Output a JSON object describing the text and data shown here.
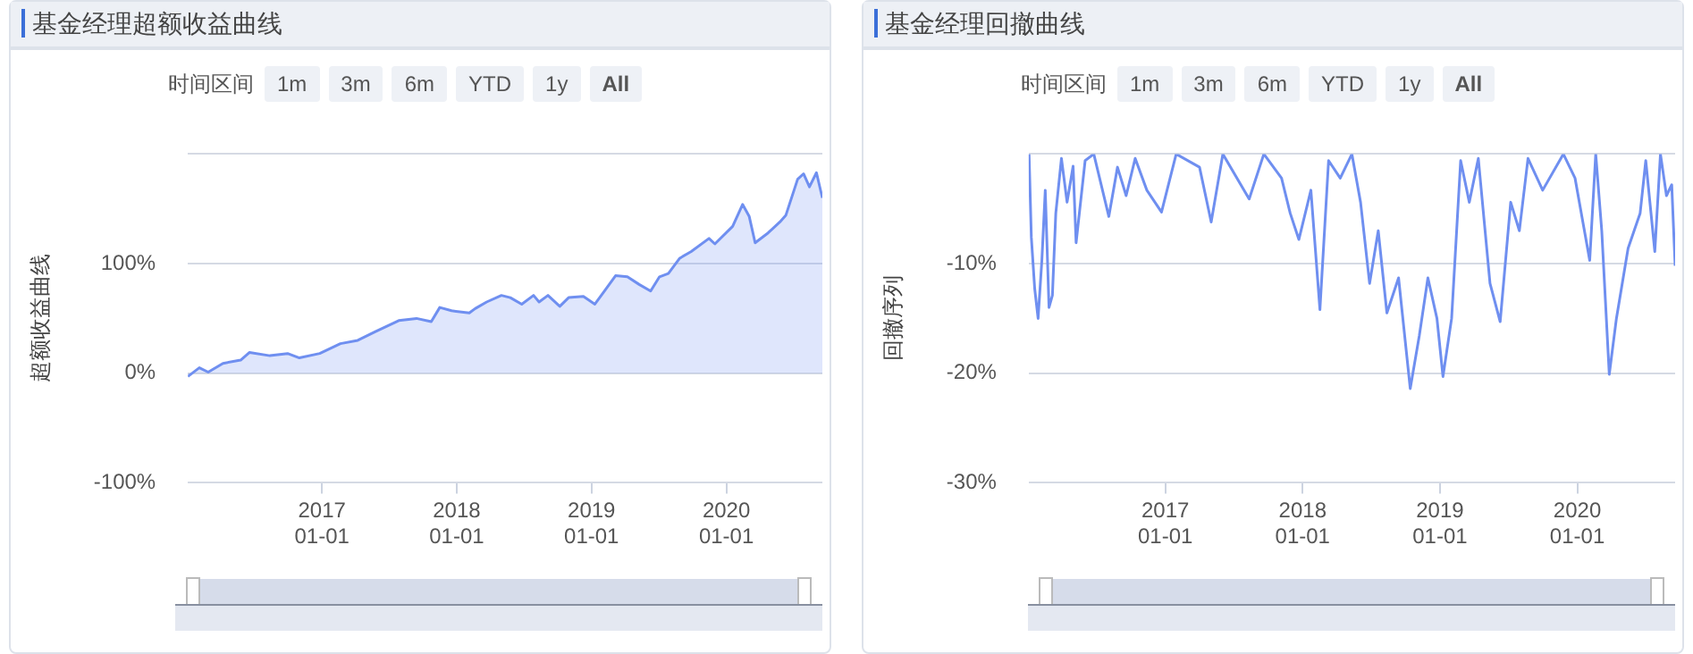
{
  "chart_data": [
    {
      "type": "area",
      "title": "基金经理超额收益曲线",
      "ylabel": "超额收益曲线",
      "grid": "y",
      "legend": false,
      "marker": "none",
      "annotations": [
        "时间区间",
        "1m",
        "3m",
        "6m",
        "YTD",
        "1y",
        "All"
      ],
      "xlim": [
        "2016-01-04",
        "2020-09-17"
      ],
      "xticks": [
        {
          "value": "2017-01-01",
          "label": "2017\n01-01"
        },
        {
          "value": "2018-01-01",
          "label": "2018\n01-01"
        },
        {
          "value": "2019-01-01",
          "label": "2019\n01-01"
        },
        {
          "value": "2020-01-01",
          "label": "2020\n01-01"
        }
      ],
      "ylim": [
        -100,
        200
      ],
      "yticks": [
        {
          "value": -100,
          "label": "-100%"
        },
        {
          "value": 0,
          "label": "0%"
        },
        {
          "value": 100,
          "label": "100%"
        },
        {
          "value": 200,
          "label": null
        }
      ],
      "x": [
        "2016-01-04",
        "2016-02-04",
        "2016-02-28",
        "2016-04-08",
        "2016-05-26",
        "2016-06-19",
        "2016-08-13",
        "2016-09-30",
        "2016-11-01",
        "2016-12-26",
        "2017-02-20",
        "2017-04-08",
        "2017-05-26",
        "2017-07-28",
        "2017-09-14",
        "2017-10-24",
        "2017-11-16",
        "2017-12-18",
        "2018-02-04",
        "2018-02-20",
        "2018-03-23",
        "2018-05-02",
        "2018-05-26",
        "2018-06-26",
        "2018-07-28",
        "2018-08-12",
        "2018-09-05",
        "2018-10-07",
        "2018-10-31",
        "2018-12-10",
        "2019-01-10",
        "2019-02-03",
        "2019-03-07",
        "2019-04-08",
        "2019-05-10",
        "2019-06-10",
        "2019-07-04",
        "2019-07-28",
        "2019-08-28",
        "2019-09-28",
        "2019-11-15",
        "2019-12-01",
        "2020-01-18",
        "2020-02-14",
        "2020-03-03",
        "2020-03-19",
        "2020-04-23",
        "2020-05-25",
        "2020-06-10",
        "2020-07-12",
        "2020-07-28",
        "2020-08-13",
        "2020-09-01",
        "2020-09-17"
      ],
      "series": [
        {
          "color": "#6f8ff0",
          "values": [
            -3,
            5,
            1,
            9,
            12,
            19,
            16,
            18,
            14,
            18,
            27,
            30,
            38,
            48,
            50,
            47,
            60,
            57,
            55,
            59,
            65,
            71,
            69,
            63,
            71,
            65,
            71,
            61,
            69,
            70,
            63,
            74,
            89,
            88,
            81,
            75,
            88,
            91,
            105,
            111,
            123,
            118,
            134,
            154,
            143,
            119,
            128,
            138,
            144,
            177,
            182,
            170,
            183,
            160
          ]
        }
      ]
    },
    {
      "type": "line",
      "title": "基金经理回撤曲线",
      "ylabel": "回撤序列",
      "grid": "y",
      "legend": false,
      "marker": "none",
      "annotations": [
        "时间区间",
        "1m",
        "3m",
        "6m",
        "YTD",
        "1y",
        "All"
      ],
      "xlim": [
        "2016-01-04",
        "2020-09-17"
      ],
      "xticks": [
        {
          "value": "2017-01-01",
          "label": "2017\n01-01"
        },
        {
          "value": "2018-01-01",
          "label": "2018\n01-01"
        },
        {
          "value": "2019-01-01",
          "label": "2019\n01-01"
        },
        {
          "value": "2020-01-01",
          "label": "2020\n01-01"
        }
      ],
      "ylim": [
        -30,
        0
      ],
      "yticks": [
        {
          "value": -30,
          "label": "-30%"
        },
        {
          "value": -20,
          "label": "-20%"
        },
        {
          "value": -10,
          "label": "-10%"
        },
        {
          "value": 0,
          "label": null
        }
      ],
      "x": [
        "2016-01-05",
        "2016-01-11",
        "2016-01-20",
        "2016-01-29",
        "2016-02-08",
        "2016-02-17",
        "2016-02-27",
        "2016-03-07",
        "2016-03-16",
        "2016-03-31",
        "2016-04-15",
        "2016-05-01",
        "2016-05-09",
        "2016-06-02",
        "2016-06-25",
        "2016-08-04",
        "2016-08-27",
        "2016-09-19",
        "2016-10-13",
        "2016-11-13",
        "2016-12-22",
        "2017-01-30",
        "2017-04-02",
        "2017-05-03",
        "2017-06-03",
        "2017-08-12",
        "2017-09-20",
        "2017-11-06",
        "2017-11-29",
        "2017-12-22",
        "2018-01-23",
        "2018-02-16",
        "2018-03-11",
        "2018-04-11",
        "2018-05-12",
        "2018-06-04",
        "2018-06-28",
        "2018-07-21",
        "2018-08-13",
        "2018-09-13",
        "2018-10-14",
        "2018-11-07",
        "2018-11-30",
        "2018-12-24",
        "2019-01-09",
        "2019-02-01",
        "2019-02-25",
        "2019-03-20",
        "2019-04-13",
        "2019-05-14",
        "2019-06-10",
        "2019-07-08",
        "2019-07-31",
        "2019-08-23",
        "2019-10-01",
        "2019-11-25",
        "2019-12-26",
        "2020-02-03",
        "2020-02-19",
        "2020-03-06",
        "2020-03-26",
        "2020-04-14",
        "2020-05-15",
        "2020-06-16",
        "2020-07-01",
        "2020-07-25",
        "2020-08-09",
        "2020-08-25",
        "2020-09-08",
        "2020-09-17"
      ],
      "series": [
        {
          "color": "#6f8ff0",
          "values": [
            0,
            -7.6,
            -12.3,
            -15,
            -9.7,
            -3.3,
            -14,
            -12.9,
            -5.4,
            -0.4,
            -4.4,
            -1.1,
            -8.1,
            -0.6,
            0,
            -5.7,
            -1.2,
            -3.8,
            -0.4,
            -3.3,
            -5.3,
            0,
            -1.2,
            -6.2,
            0,
            -4.1,
            0,
            -2.2,
            -5.4,
            -7.8,
            -3.3,
            -14.2,
            -0.6,
            -2.2,
            0,
            -4.4,
            -11.8,
            -7,
            -14.5,
            -11.3,
            -21.4,
            -16.6,
            -11.3,
            -15,
            -20.3,
            -15,
            -0.6,
            -4.4,
            -0.4,
            -11.8,
            -15.3,
            -4.4,
            -7,
            -0.4,
            -3.3,
            0,
            -2.2,
            -9.7,
            0,
            -7,
            -20.1,
            -15,
            -8.6,
            -5.4,
            -0.6,
            -8.9,
            0,
            -3.8,
            -2.8,
            -10.2
          ]
        }
      ]
    }
  ]
}
